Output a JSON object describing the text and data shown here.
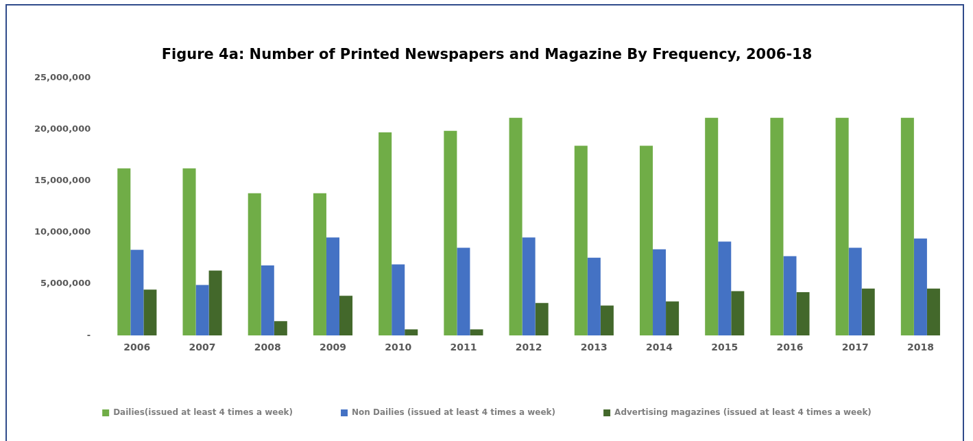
{
  "chart_data": {
    "type": "bar",
    "title": "Figure 4a: Number of Printed Newspapers and Magazine By Frequency, 2006-18",
    "categories": [
      "2006",
      "2007",
      "2008",
      "2009",
      "2010",
      "2011",
      "2012",
      "2013",
      "2014",
      "2015",
      "2016",
      "2017",
      "2018"
    ],
    "series": [
      {
        "name": "Dailies(issued at least 4 times a week)",
        "color": "#70ad47",
        "values": [
          16200000,
          16200000,
          13800000,
          13800000,
          19700000,
          19850000,
          21100000,
          18400000,
          18400000,
          21100000,
          21100000,
          21100000,
          21100000
        ]
      },
      {
        "name": "Non Dailies (issued at least 4 times a week)",
        "color": "#4472c4",
        "values": [
          8300000,
          4900000,
          6800000,
          9500000,
          6900000,
          8500000,
          9500000,
          7550000,
          8350000,
          9100000,
          7700000,
          8500000,
          9400000
        ]
      },
      {
        "name": "Advertising magazines (issued at least 4 times a week)",
        "color": "#43682b",
        "values": [
          4450000,
          6300000,
          1400000,
          3850000,
          600000,
          600000,
          3150000,
          2900000,
          3300000,
          4300000,
          4200000,
          4550000,
          4550000
        ]
      }
    ],
    "ylim": [
      0,
      25000000
    ],
    "yticks": [
      {
        "value": 0,
        "label": "-"
      },
      {
        "value": 5000000,
        "label": "5,000,000"
      },
      {
        "value": 10000000,
        "label": "10,000,000"
      },
      {
        "value": 15000000,
        "label": "15,000,000"
      },
      {
        "value": 20000000,
        "label": "20,000,000"
      },
      {
        "value": 25000000,
        "label": "25,000,000"
      }
    ],
    "grid": false,
    "legend": "bottom"
  }
}
